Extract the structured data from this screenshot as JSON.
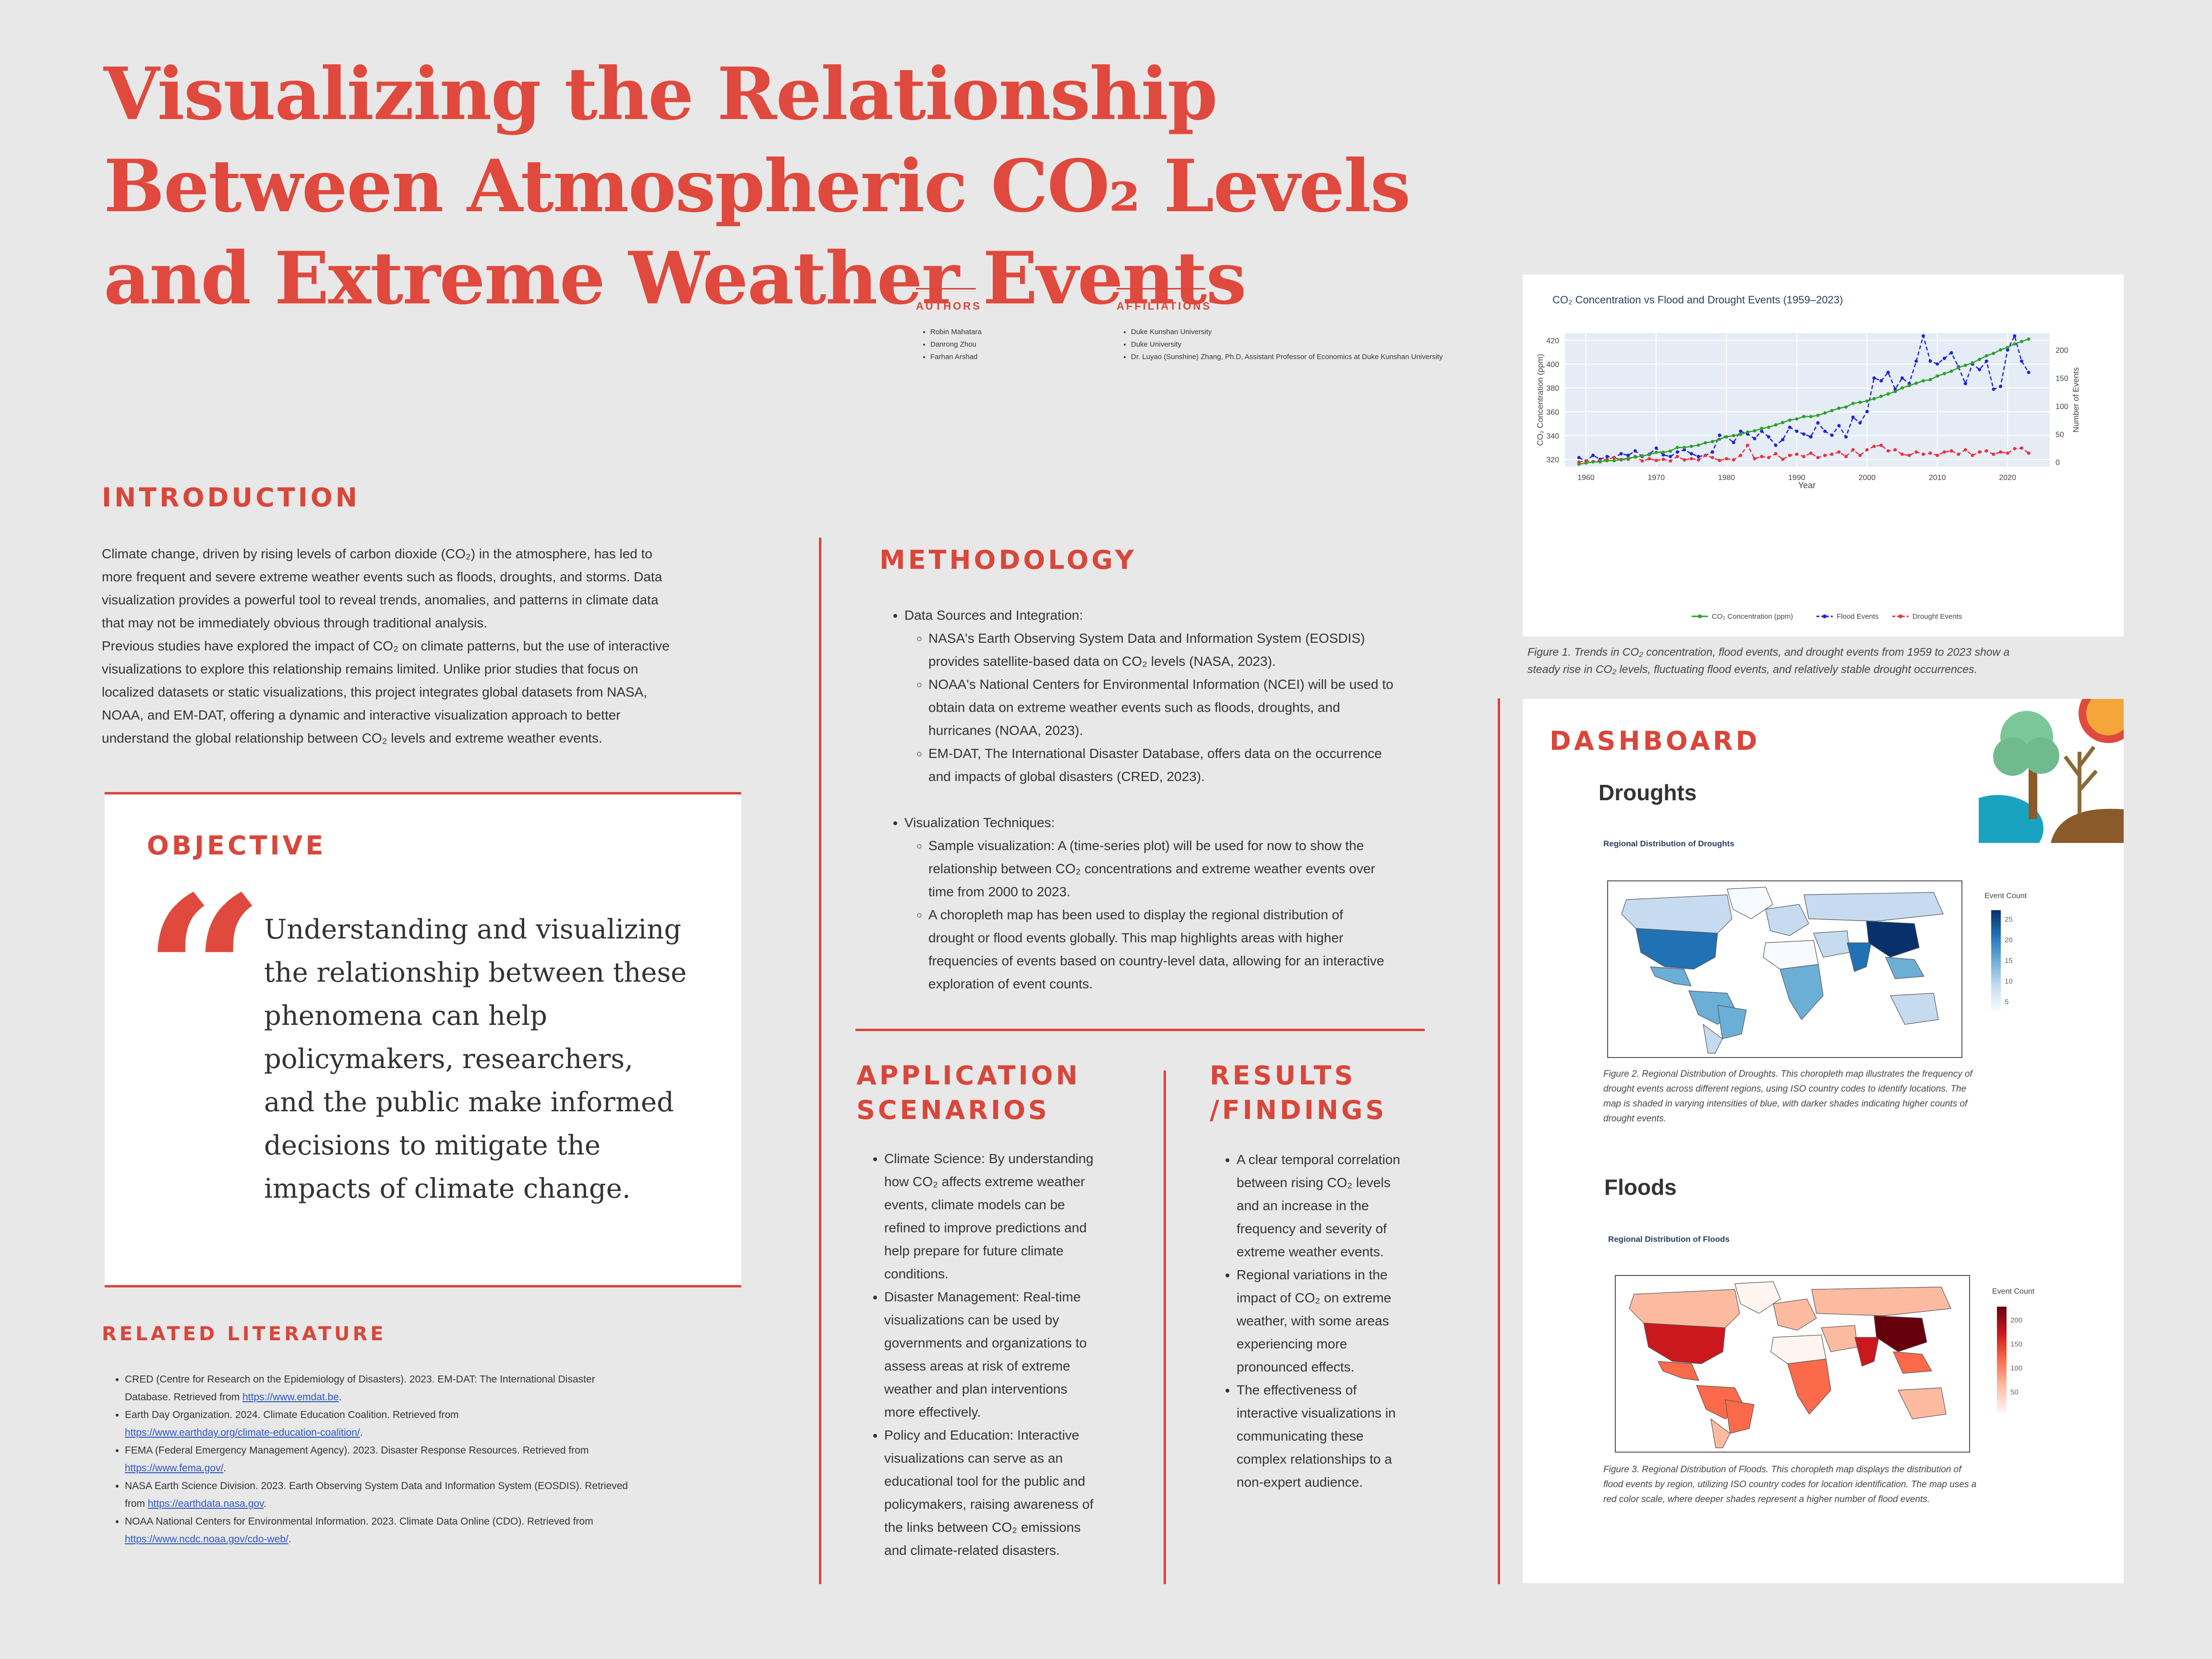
{
  "title": "Visualizing the Relationship Between Atmospheric CO₂ Levels and Extreme Weather Events",
  "authors": {
    "heading": "AUTHORS",
    "names": [
      "Robin Mahatara",
      "Danrong Zhou",
      "Farhan Arshad"
    ]
  },
  "affiliations": {
    "heading": "AFFILIATIONS",
    "items": [
      "Duke Kunshan University",
      "Duke University",
      "Dr. Luyao (Sunshine) Zhang, Ph.D, Assistant Professor of Economics at Duke Kunshan University"
    ]
  },
  "introduction": {
    "heading": "INTRODUCTION",
    "lines": [
      "Climate change, driven by rising levels of carbon dioxide (CO₂) in the atmosphere, has led to",
      "more frequent and severe extreme weather events such as floods, droughts, and storms.  Data",
      "visualization provides a powerful tool to reveal trends, anomalies, and patterns in climate data",
      "that may not be immediately obvious through traditional analysis.",
      "Previous studies have explored the impact of CO₂ on climate patterns, but the use of interactive",
      "visualizations to explore this relationship remains limited. Unlike prior studies that focus on",
      "localized datasets or static visualizations, this project integrates global datasets from NASA,",
      "NOAA, and EM-DAT, offering a dynamic and interactive visualization approach to better",
      "understand the global relationship between CO₂ levels and extreme weather events."
    ]
  },
  "objective": {
    "heading": "OBJECTIVE",
    "quote_mark": "“",
    "lines": [
      "Understanding and visualizing",
      "the relationship between these",
      "phenomena can help",
      "policymakers, researchers,",
      "and the public make informed",
      "decisions to mitigate the",
      "impacts of climate change."
    ]
  },
  "related_literature": {
    "heading": "RELATED LITERATURE",
    "items": [
      {
        "text": "CRED (Centre for Research on the Epidemiology of Disasters). 2023. EM-DAT: The International Disaster",
        "text2": "Database. Retrieved from ",
        "link": "https://www.emdat.be",
        "after": "."
      },
      {
        "text": "Earth Day Organization. 2024. Climate Education Coalition. Retrieved from",
        "text2": "",
        "link": "https://www.earthday.org/climate-education-coalition/",
        "after": "."
      },
      {
        "text": "FEMA (Federal Emergency Management Agency). 2023. Disaster Response Resources. Retrieved from",
        "text2": "",
        "link": "https://www.fema.gov/",
        "after": "."
      },
      {
        "text": "NASA Earth Science Division. 2023. Earth Observing System Data and Information System (EOSDIS). Retrieved",
        "text2": "from ",
        "link": "https://earthdata.nasa.gov",
        "after": "."
      },
      {
        "text": "NOAA National Centers for Environmental Information. 2023. Climate Data Online (CDO). Retrieved from",
        "text2": "",
        "link": "https://www.ncdc.noaa.gov/cdo-web/",
        "after": "."
      }
    ]
  },
  "methodology": {
    "heading": "METHODOLOGY",
    "ds_heading": "Data Sources and Integration:",
    "ds_items": [
      [
        "NASA's Earth Observing System Data and Information System (EOSDIS)",
        "provides satellite-based data on CO₂ levels (NASA, 2023)."
      ],
      [
        "NOAA's National Centers for Environmental Information (NCEI) will be used to",
        "obtain data on extreme weather events such as floods, droughts, and",
        "hurricanes (NOAA, 2023)."
      ],
      [
        "EM-DAT, The International Disaster Database, offers data on the occurrence",
        "and impacts of global disasters (CRED, 2023)."
      ]
    ],
    "vt_heading": "Visualization Techniques:",
    "vt_items": [
      [
        "Sample visualization: A (time-series plot) will be used for now to show the",
        "relationship between CO₂ concentrations and extreme weather events over",
        "time from 2000 to 2023."
      ],
      [
        "A choropleth map has been used to display the regional distribution of",
        "drought or flood events globally. This map highlights areas with higher",
        "frequencies of events based on country-level data, allowing for an interactive",
        "exploration of event counts."
      ]
    ]
  },
  "applications": {
    "heading1": "APPLICATION",
    "heading2": "SCENARIOS",
    "items": [
      [
        "Climate Science: By understanding",
        "how CO₂ affects extreme weather",
        "events, climate models can be",
        "refined to improve predictions and",
        "help prepare for future climate",
        "conditions."
      ],
      [
        "Disaster Management: Real-time",
        "visualizations can be used by",
        "governments and organizations to",
        "assess areas at risk of extreme",
        "weather and plan interventions",
        "more effectively."
      ],
      [
        "Policy and Education: Interactive",
        "visualizations can serve as an",
        "educational tool for the public and",
        "policymakers, raising awareness of",
        "the links between CO₂ emissions",
        "and climate-related disasters."
      ]
    ]
  },
  "results": {
    "heading1": "RESULTS",
    "heading2": "/FINDINGS",
    "items": [
      [
        "A clear temporal correlation",
        "between rising CO₂ levels",
        "and an increase in the",
        "frequency and severity of",
        "extreme weather events."
      ],
      [
        "Regional variations in the",
        "impact of CO₂ on extreme",
        "weather, with some areas",
        "experiencing more",
        "pronounced effects."
      ],
      [
        "The effectiveness of",
        "interactive visualizations in",
        "communicating these",
        "complex relationships to a",
        "non-expert audience."
      ]
    ]
  },
  "figure1": {
    "caption": [
      "Figure 1. Trends in CO₂ concentration, flood events, and drought events from 1959 to 2023 show a",
      "steady rise in CO₂ levels, fluctuating flood events, and relatively stable drought occurrences."
    ]
  },
  "chart_data": {
    "type": "line",
    "title": "CO₂ Concentration vs Flood and Drought Events (1959–2023)",
    "xlabel": "Year",
    "ylabel": "CO₂ Concentration (ppm)",
    "y2label": "Number of Events",
    "x_ticks": [
      1960,
      1970,
      1980,
      1990,
      2000,
      2010,
      2020
    ],
    "y_ticks": [
      320,
      340,
      360,
      380,
      400,
      420
    ],
    "y2_ticks": [
      0,
      50,
      100,
      150,
      200
    ],
    "xlim": [
      1957,
      2026
    ],
    "ylim": [
      314,
      426
    ],
    "y2lim": [
      -8,
      230
    ],
    "legend_position": "bottom",
    "series": [
      {
        "name": "CO₂ Concentration (ppm)",
        "color": "#2ca02c",
        "axis": "left",
        "x": [
          1959,
          1960,
          1961,
          1962,
          1963,
          1964,
          1965,
          1966,
          1967,
          1968,
          1969,
          1970,
          1971,
          1972,
          1973,
          1974,
          1975,
          1976,
          1977,
          1978,
          1979,
          1980,
          1981,
          1982,
          1983,
          1984,
          1985,
          1986,
          1987,
          1988,
          1989,
          1990,
          1991,
          1992,
          1993,
          1994,
          1995,
          1996,
          1997,
          1998,
          1999,
          2000,
          2001,
          2002,
          2003,
          2004,
          2005,
          2006,
          2007,
          2008,
          2009,
          2010,
          2011,
          2012,
          2013,
          2014,
          2015,
          2016,
          2017,
          2018,
          2019,
          2020,
          2021,
          2022,
          2023
        ],
        "y": [
          316,
          317,
          318,
          318,
          319,
          319,
          320,
          321,
          322,
          323,
          324,
          326,
          326,
          327,
          330,
          330,
          331,
          332,
          334,
          335,
          337,
          339,
          340,
          341,
          343,
          344,
          346,
          347,
          349,
          351,
          353,
          354,
          356,
          356,
          357,
          359,
          361,
          363,
          364,
          367,
          368,
          369,
          371,
          373,
          375,
          377,
          380,
          382,
          384,
          386,
          387,
          390,
          392,
          394,
          397,
          399,
          401,
          404,
          407,
          409,
          412,
          414,
          417,
          419,
          421
        ]
      },
      {
        "name": "Flood Events",
        "color": "#1f1fe0",
        "axis": "right",
        "dashed": true,
        "x": [
          1959,
          1960,
          1961,
          1962,
          1963,
          1964,
          1965,
          1966,
          1967,
          1968,
          1969,
          1970,
          1971,
          1972,
          1973,
          1974,
          1975,
          1976,
          1977,
          1978,
          1979,
          1980,
          1981,
          1982,
          1983,
          1984,
          1985,
          1986,
          1987,
          1988,
          1989,
          1990,
          1991,
          1992,
          1993,
          1994,
          1995,
          1996,
          1997,
          1998,
          1999,
          2000,
          2001,
          2002,
          2003,
          2004,
          2005,
          2006,
          2007,
          2008,
          2009,
          2010,
          2011,
          2012,
          2013,
          2014,
          2015,
          2016,
          2017,
          2018,
          2019,
          2020,
          2021,
          2022,
          2023
        ],
        "y": [
          8,
          2,
          12,
          5,
          10,
          8,
          15,
          12,
          20,
          10,
          14,
          25,
          13,
          10,
          18,
          22,
          15,
          10,
          12,
          18,
          48,
          45,
          35,
          55,
          50,
          42,
          55,
          45,
          30,
          40,
          62,
          55,
          50,
          45,
          70,
          55,
          48,
          65,
          45,
          80,
          70,
          90,
          150,
          145,
          160,
          130,
          150,
          140,
          180,
          225,
          180,
          175,
          185,
          195,
          170,
          140,
          175,
          165,
          180,
          130,
          135,
          200,
          225,
          180,
          160
        ]
      },
      {
        "name": "Drought Events",
        "color": "#e8323c",
        "axis": "right",
        "dashed": true,
        "x": [
          1959,
          1960,
          1961,
          1962,
          1963,
          1964,
          1965,
          1966,
          1967,
          1968,
          1969,
          1970,
          1971,
          1972,
          1973,
          1974,
          1975,
          1976,
          1977,
          1978,
          1979,
          1980,
          1981,
          1982,
          1983,
          1984,
          1985,
          1986,
          1987,
          1988,
          1989,
          1990,
          1991,
          1992,
          1993,
          1994,
          1995,
          1996,
          1997,
          1998,
          1999,
          2000,
          2001,
          2002,
          2003,
          2004,
          2005,
          2006,
          2007,
          2008,
          2009,
          2010,
          2011,
          2012,
          2013,
          2014,
          2015,
          2016,
          2017,
          2018,
          2019,
          2020,
          2021,
          2022,
          2023
        ],
        "y": [
          0,
          2,
          1,
          3,
          5,
          8,
          4,
          5,
          10,
          2,
          6,
          3,
          5,
          2,
          10,
          4,
          6,
          4,
          12,
          8,
          3,
          6,
          4,
          12,
          30,
          6,
          10,
          8,
          15,
          5,
          12,
          14,
          10,
          16,
          8,
          12,
          14,
          18,
          10,
          22,
          12,
          22,
          28,
          30,
          20,
          22,
          14,
          12,
          18,
          14,
          16,
          12,
          18,
          20,
          14,
          22,
          12,
          18,
          20,
          14,
          18,
          16,
          24,
          25,
          16
        ]
      }
    ]
  },
  "dashboard": {
    "heading": "DASHBOARD",
    "droughts": {
      "heading": "Droughts",
      "map_title": "Regional Distribution of Droughts",
      "legend_title": "Event Count",
      "legend_ticks": [
        "25",
        "20",
        "15",
        "10",
        "5"
      ],
      "scale_colors": [
        "#08306b",
        "#2171b5",
        "#6baed6",
        "#c6dbef",
        "#f7fbff"
      ],
      "caption": [
        "Figure 2. Regional Distribution of Droughts. This choropleth map illustrates the frequency of",
        "drought events across different regions, using ISO country codes to identify locations. The",
        "map is shaded in varying intensities of blue, with darker shades indicating higher counts of",
        "drought events."
      ]
    },
    "floods": {
      "heading": "Floods",
      "map_title": "Regional Distribution of Floods",
      "legend_title": "Event Count",
      "legend_ticks": [
        "200",
        "150",
        "100",
        "50"
      ],
      "scale_colors": [
        "#67000d",
        "#cb181d",
        "#fb6a4a",
        "#fcbba1",
        "#fff5f0"
      ],
      "caption": [
        "Figure 3. Regional Distribution of Floods. This choropleth map displays the distribution of",
        "flood events by region, utilizing ISO country codes for location identification. The map uses a",
        "red color scale, where deeper shades represent a higher number of flood events."
      ]
    }
  }
}
